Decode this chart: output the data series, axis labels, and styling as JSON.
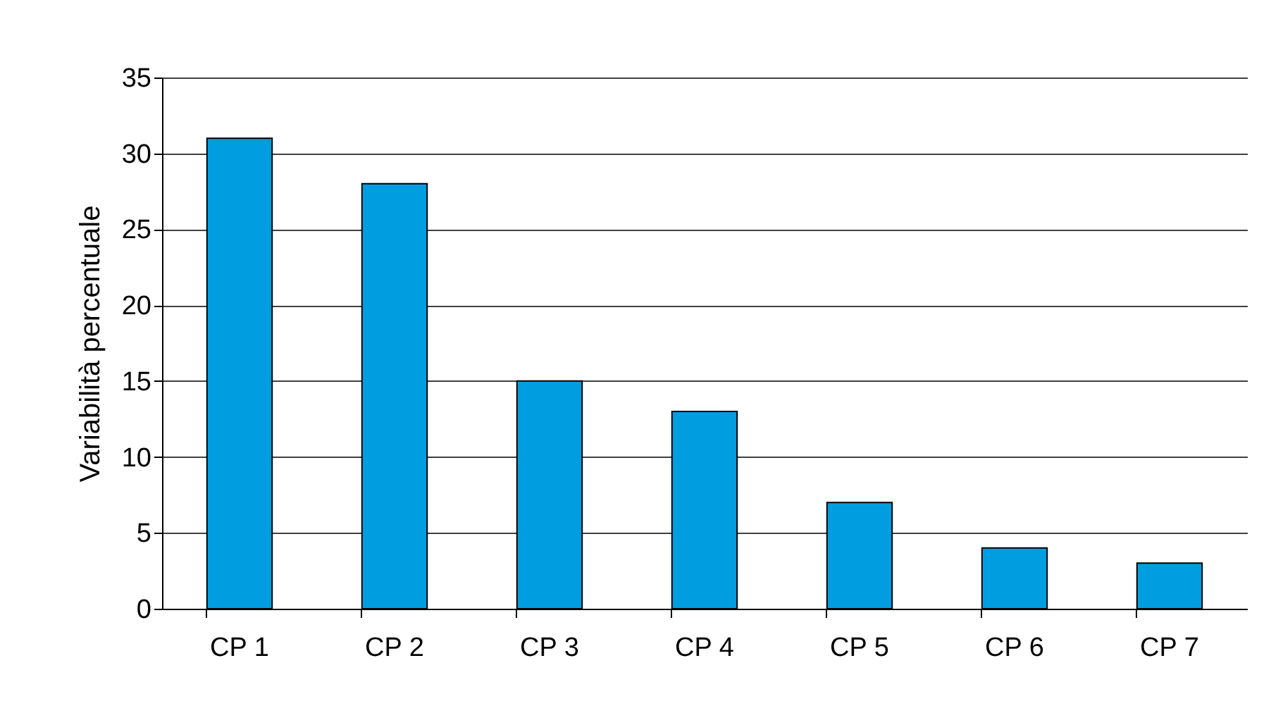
{
  "chart_data": {
    "type": "bar",
    "ylabel": "Variabilità percentuale",
    "categories": [
      "CP 1",
      "CP 2",
      "CP 3",
      "CP 4",
      "CP 5",
      "CP 6",
      "CP 7"
    ],
    "values": [
      31,
      28,
      15,
      13,
      7,
      4,
      3
    ],
    "color": "#009ee0",
    "ylim": [
      0,
      35
    ],
    "yticks": [
      0,
      5,
      10,
      15,
      20,
      25,
      30,
      35
    ],
    "grid": "y"
  }
}
